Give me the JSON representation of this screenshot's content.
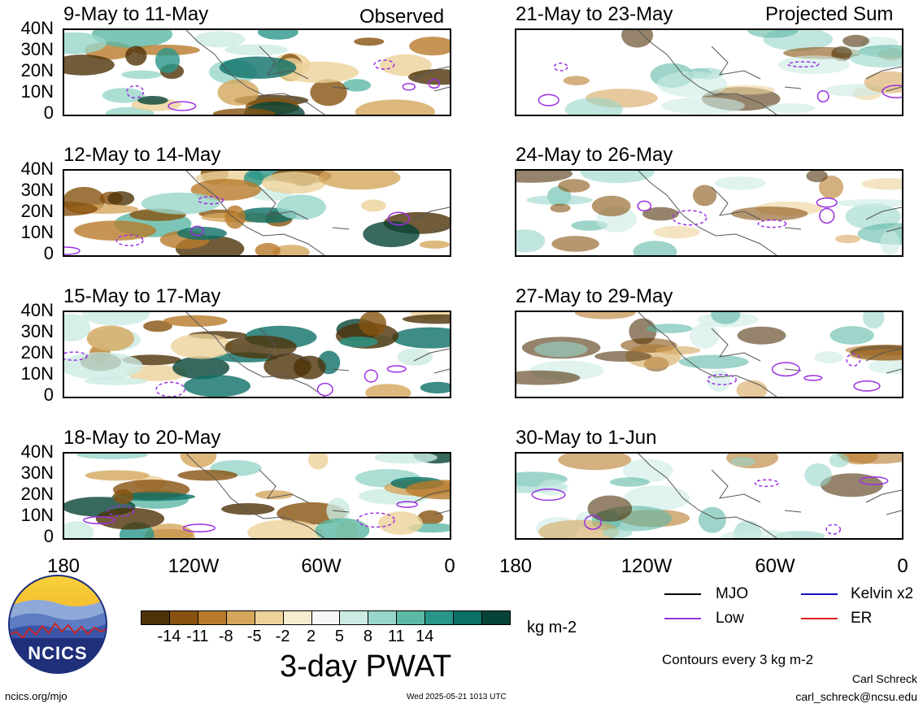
{
  "panels_left": [
    {
      "title": "9-May to 11-May",
      "tag": "Observed"
    },
    {
      "title": "12-May to 14-May",
      "tag": ""
    },
    {
      "title": "15-May to 17-May",
      "tag": ""
    },
    {
      "title": "18-May to 20-May",
      "tag": ""
    }
  ],
  "panels_right": [
    {
      "title": "21-May to 23-May",
      "tag": "Projected Sum"
    },
    {
      "title": "24-May to 26-May",
      "tag": ""
    },
    {
      "title": "27-May to 29-May",
      "tag": ""
    },
    {
      "title": "30-May to 1-Jun",
      "tag": ""
    }
  ],
  "y_ticks": [
    "40N",
    "30N",
    "20N",
    "10N",
    "0"
  ],
  "x_ticks": [
    "180",
    "120W",
    "60W",
    "0"
  ],
  "colorbar": {
    "labels": [
      "-14",
      "-11",
      "-8",
      "-5",
      "-2",
      "2",
      "5",
      "8",
      "11",
      "14"
    ],
    "colors": [
      "#4e3208",
      "#87520f",
      "#b87a2a",
      "#d5a65c",
      "#ecd29a",
      "#f6ecd0",
      "#f7f7f7",
      "#ccebe4",
      "#97d6c9",
      "#5db8a5",
      "#2a968a",
      "#0c6f66",
      "#064437"
    ],
    "units": "kg m-2",
    "title": "3-day PWAT"
  },
  "legend": {
    "items": [
      {
        "label": "MJO",
        "color": "#000000"
      },
      {
        "label": "Kelvin x2",
        "color": "#1010c0"
      },
      {
        "label": "Low",
        "color": "#9b30e0"
      },
      {
        "label": "ER",
        "color": "#e02020"
      }
    ],
    "note": "Contours every 3 kg m-2"
  },
  "logo": {
    "text": "NCICS"
  },
  "footer": {
    "url": "ncics.org/mjo",
    "timestamp": "Wed 2025-05-21 1013 UTC",
    "author": "Carl Schreck",
    "email": "carl_schreck@ncsu.edu"
  }
}
